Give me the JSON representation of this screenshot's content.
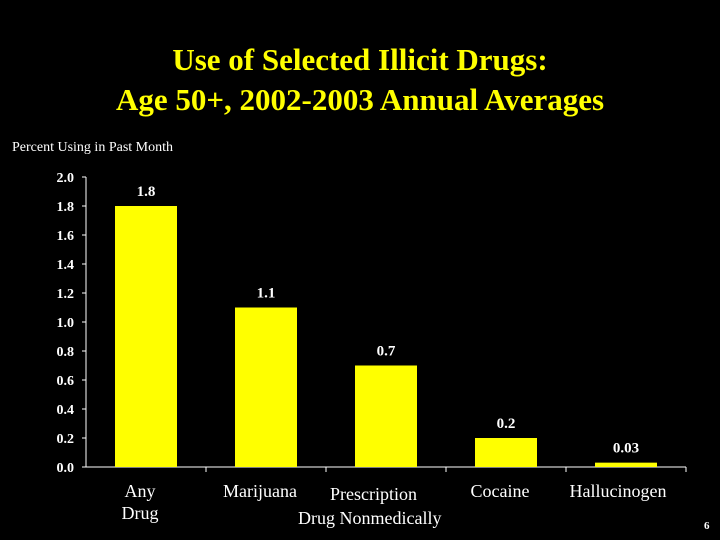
{
  "title_line1": "Use of Selected Illicit Drugs:",
  "title_line2": "Age 50+, 2002-2003 Annual Averages",
  "slide_number": "6",
  "chart_data": {
    "type": "bar",
    "title": "Use of Selected Illicit Drugs: Age 50+, 2002-2003 Annual Averages",
    "ylabel": "Percent Using in Past Month",
    "xlabel": "",
    "categories": [
      "Any Drug",
      "Marijuana",
      "Prescription Drug Nonmedically",
      "Cocaine",
      "Hallucinogen"
    ],
    "category_lines": [
      [
        "Any",
        "Drug"
      ],
      [
        "Marijuana"
      ],
      [
        "Prescription",
        "Drug Nonmedically"
      ],
      [
        "Cocaine"
      ],
      [
        "Hallucinogen"
      ]
    ],
    "values": [
      1.8,
      1.1,
      0.7,
      0.2,
      0.03
    ],
    "value_labels": [
      "1.8",
      "1.1",
      "0.7",
      "0.2",
      "0.03"
    ],
    "yticks": [
      "0.0",
      "0.2",
      "0.4",
      "0.6",
      "0.8",
      "1.0",
      "1.2",
      "1.4",
      "1.6",
      "1.8",
      "2.0"
    ],
    "ylim": [
      0,
      2.0
    ],
    "grid": false,
    "legend": "none",
    "colors": {
      "bar": "#ffff00",
      "background": "#000000",
      "title": "#ffff00",
      "text": "#ffffff"
    }
  }
}
